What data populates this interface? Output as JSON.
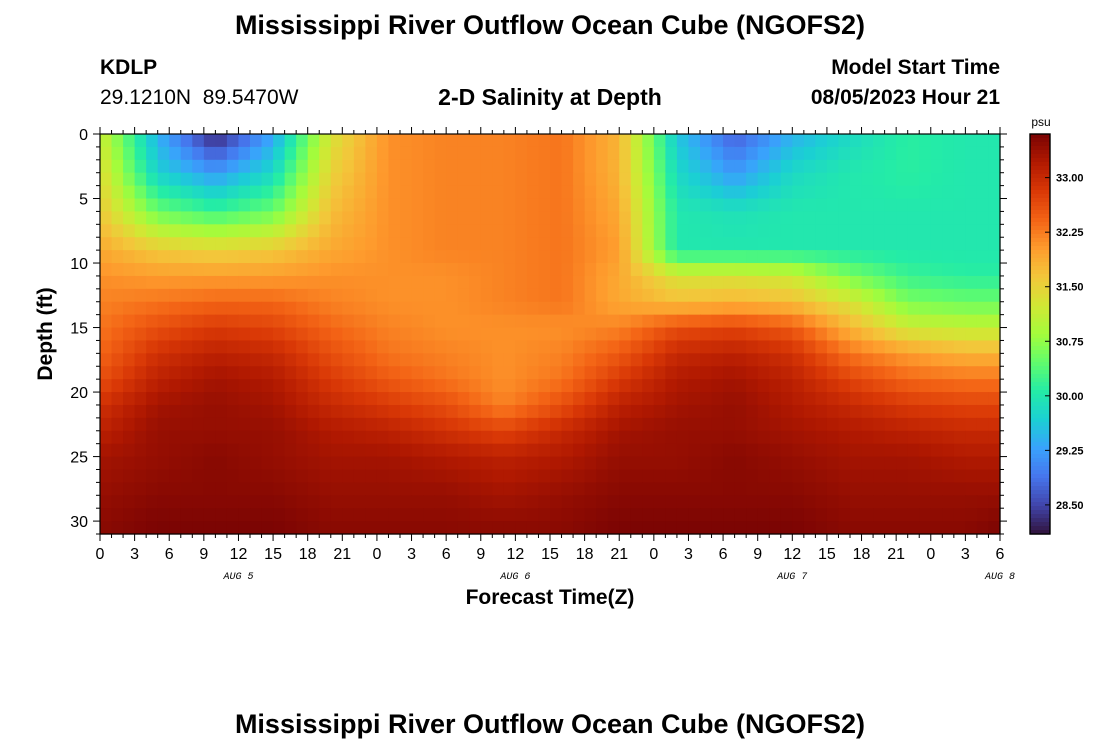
{
  "page": {
    "title": "Mississippi River Outflow Ocean Cube (NGOFS2)",
    "station": "KDLP",
    "coordinates": "29.1210N  89.5470W",
    "subtitle": "2-D Salinity at Depth",
    "model_start_label": "Model Start Time",
    "model_start_value": "08/05/2023 Hour 21",
    "footer_title": "Mississippi River Outflow Ocean Cube (NGOFS2)"
  },
  "chart_data": {
    "type": "heatmap",
    "title": "2-D Salinity at Depth",
    "xlabel": "Forecast Time(Z)",
    "ylabel": "Depth (ft)",
    "x_ticks": [
      "0",
      "3",
      "6",
      "9",
      "12",
      "15",
      "18",
      "21",
      "0",
      "3",
      "6",
      "9",
      "12",
      "15",
      "18",
      "21",
      "0",
      "3",
      "6",
      "9",
      "12",
      "15",
      "18",
      "21",
      "0",
      "3",
      "6"
    ],
    "day_labels": [
      {
        "label": "AUG 5",
        "hour": 12
      },
      {
        "label": "AUG 6",
        "hour": 36
      },
      {
        "label": "AUG 7",
        "hour": 60
      },
      {
        "label": "AUG 8",
        "hour": 78
      }
    ],
    "xlim_hours": [
      0,
      78
    ],
    "y_ticks": [
      0,
      5,
      10,
      15,
      20,
      25,
      30
    ],
    "ylim": [
      31,
      0
    ],
    "colorbar": {
      "unit": "psu",
      "ticks": [
        "33.00",
        "32.25",
        "31.50",
        "30.75",
        "30.00",
        "29.25",
        "28.50"
      ],
      "range": [
        28.1,
        33.6
      ],
      "colormap": "turbo",
      "colors": [
        "#30123b",
        "#4145ab",
        "#4675ed",
        "#39a2fc",
        "#1bcfd4",
        "#24eca6",
        "#61fc6c",
        "#a4fc3b",
        "#d1e834",
        "#f3c63a",
        "#fe9b2d",
        "#f36315",
        "#d93806",
        "#b11901",
        "#7a0403"
      ]
    },
    "salinity_rows": [
      {
        "depth": 0,
        "values": [
          31.2,
          29.4,
          28.2,
          29.3,
          31.3,
          32.1,
          32.2,
          32.2,
          32.3,
          31.8,
          29.6,
          28.7,
          29.4,
          29.8,
          30.1,
          30.0,
          30.0
        ]
      },
      {
        "depth": 3,
        "values": [
          31.4,
          29.7,
          29.2,
          29.8,
          31.5,
          32.1,
          32.2,
          32.2,
          32.3,
          31.8,
          29.8,
          29.2,
          29.8,
          30.0,
          30.1,
          30.0,
          30.0
        ]
      },
      {
        "depth": 6,
        "values": [
          31.6,
          30.5,
          30.2,
          30.5,
          31.7,
          32.1,
          32.2,
          32.2,
          32.3,
          31.9,
          30.0,
          29.9,
          30.0,
          30.0,
          30.0,
          30.0,
          30.0
        ]
      },
      {
        "depth": 9,
        "values": [
          31.9,
          31.6,
          31.5,
          31.6,
          31.9,
          32.1,
          32.2,
          32.2,
          32.3,
          32.0,
          30.0,
          30.0,
          30.0,
          30.0,
          30.0,
          30.0,
          30.0
        ]
      },
      {
        "depth": 11,
        "values": [
          32.1,
          32.0,
          32.0,
          32.0,
          32.1,
          32.1,
          32.1,
          32.2,
          32.3,
          31.9,
          31.3,
          31.3,
          31.2,
          30.6,
          30.2,
          30.1,
          30.1
        ]
      },
      {
        "depth": 13,
        "values": [
          32.2,
          32.3,
          32.4,
          32.4,
          32.2,
          32.1,
          32.1,
          32.2,
          32.3,
          31.9,
          31.7,
          31.8,
          31.7,
          31.3,
          30.6,
          30.5,
          30.5
        ]
      },
      {
        "depth": 15,
        "values": [
          32.3,
          32.6,
          32.8,
          32.7,
          32.4,
          32.2,
          32.1,
          32.1,
          32.1,
          32.2,
          32.6,
          32.7,
          32.5,
          31.8,
          31.2,
          31.1,
          31.1
        ]
      },
      {
        "depth": 17,
        "values": [
          32.4,
          32.9,
          33.1,
          33.0,
          32.6,
          32.3,
          32.2,
          32.1,
          32.2,
          32.5,
          33.0,
          33.1,
          32.9,
          32.3,
          32.0,
          31.8,
          31.8
        ]
      },
      {
        "depth": 19,
        "values": [
          32.6,
          33.1,
          33.3,
          33.2,
          32.8,
          32.5,
          32.3,
          32.1,
          32.3,
          32.8,
          33.2,
          33.3,
          33.1,
          32.7,
          32.4,
          32.3,
          32.3
        ]
      },
      {
        "depth": 21,
        "values": [
          32.9,
          33.3,
          33.4,
          33.3,
          33.0,
          32.8,
          32.6,
          32.2,
          32.6,
          33.1,
          33.3,
          33.4,
          33.2,
          33.0,
          32.8,
          32.7,
          32.7
        ]
      },
      {
        "depth": 23,
        "values": [
          33.1,
          33.4,
          33.4,
          33.4,
          33.2,
          33.1,
          32.9,
          32.7,
          33.0,
          33.3,
          33.4,
          33.4,
          33.3,
          33.2,
          33.1,
          33.0,
          33.0
        ]
      },
      {
        "depth": 25,
        "values": [
          33.3,
          33.4,
          33.5,
          33.4,
          33.3,
          33.3,
          33.2,
          33.1,
          33.2,
          33.4,
          33.4,
          33.5,
          33.4,
          33.3,
          33.3,
          33.2,
          33.2
        ]
      },
      {
        "depth": 28,
        "values": [
          33.4,
          33.5,
          33.5,
          33.5,
          33.4,
          33.4,
          33.4,
          33.3,
          33.4,
          33.5,
          33.5,
          33.5,
          33.5,
          33.4,
          33.4,
          33.4,
          33.4
        ]
      },
      {
        "depth": 31,
        "values": [
          33.5,
          33.6,
          33.6,
          33.6,
          33.5,
          33.5,
          33.5,
          33.5,
          33.5,
          33.6,
          33.6,
          33.6,
          33.6,
          33.5,
          33.5,
          33.5,
          33.6
        ]
      }
    ],
    "salinity_row_hours": [
      0,
      5,
      10,
      15,
      20,
      25,
      30,
      35,
      40,
      45,
      50,
      55,
      60,
      65,
      70,
      75,
      78
    ]
  }
}
